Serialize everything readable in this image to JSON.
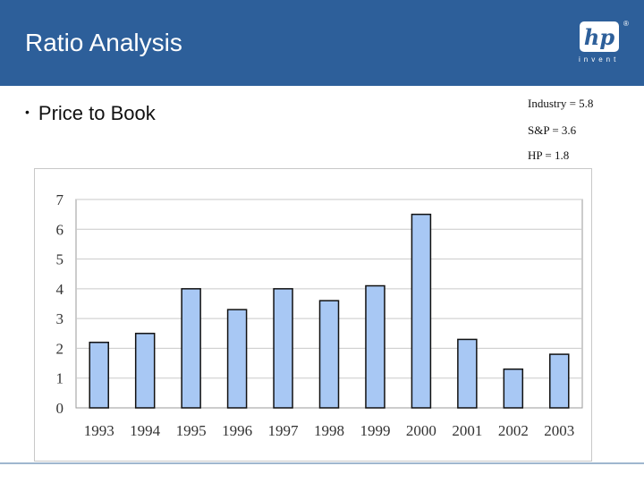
{
  "header": {
    "title": "Ratio Analysis",
    "logo_text": "hp",
    "logo_tagline": "invent",
    "logo_mark": "®"
  },
  "content": {
    "bullet": "Price to Book",
    "stats": [
      "Industry = 5.8",
      "S&P = 3.6",
      "HP = 1.8"
    ]
  },
  "colors": {
    "header_bg": "#2d5f9a",
    "bar_fill": "#a8c8f4",
    "bar_stroke": "#111111"
  },
  "chart_data": {
    "type": "bar",
    "categories": [
      "1993",
      "1994",
      "1995",
      "1996",
      "1997",
      "1998",
      "1999",
      "2000",
      "2001",
      "2002",
      "2003"
    ],
    "values": [
      2.2,
      2.5,
      4.0,
      3.3,
      4.0,
      3.6,
      4.1,
      6.5,
      2.3,
      1.3,
      1.8
    ],
    "title": "",
    "xlabel": "",
    "ylabel": "",
    "ylim": [
      0,
      7
    ],
    "yticks": [
      0,
      1,
      2,
      3,
      4,
      5,
      6,
      7
    ],
    "grid": true,
    "legend": "none"
  }
}
